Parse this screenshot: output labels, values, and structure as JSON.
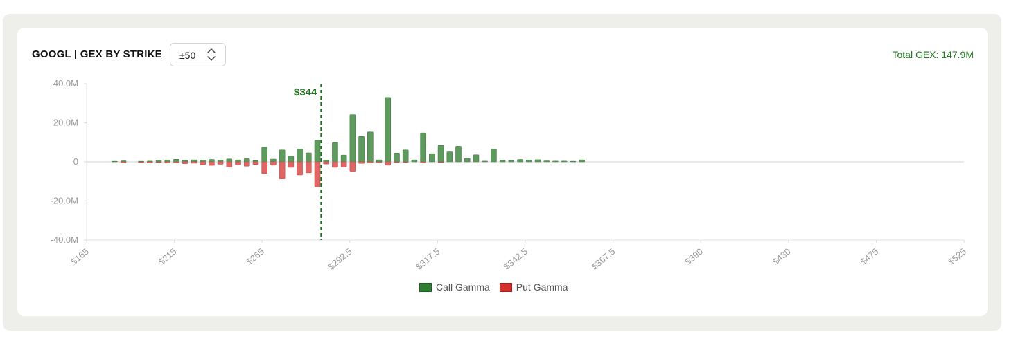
{
  "header": {
    "title": "GOOGL | GEX BY STRIKE",
    "range_value": "±50",
    "total_gex": "Total GEX: 147.9M"
  },
  "colors": {
    "call": "#5e9a5e",
    "call_legend": "#2e7d32",
    "put": "#e06666",
    "put_legend": "#d32f2f",
    "spot": "#1b6e1b"
  },
  "legend": {
    "call_label": "Call Gamma",
    "put_label": "Put Gamma"
  },
  "chart_data": {
    "type": "bar",
    "title": "GOOGL | GEX BY STRIKE",
    "xlabel": "",
    "ylabel": "",
    "ylim": [
      -40,
      40
    ],
    "y_ticks": [
      40,
      20,
      0,
      -20,
      -40
    ],
    "y_tick_labels": [
      "40.0M",
      "20.0M",
      "0",
      "-20.0M",
      "-40.0M"
    ],
    "x_tick_labels": [
      "$165",
      "$215",
      "$265",
      "$292.5",
      "$317.5",
      "$342.5",
      "$367.5",
      "$390",
      "$430",
      "$475",
      "$525"
    ],
    "spot_label": "$344",
    "spot_index": 25.5,
    "series": [
      {
        "name": "Call Gamma",
        "values": [
          0,
          0,
          0.2,
          0.5,
          0,
          0.2,
          0.4,
          0.8,
          0.9,
          1.3,
          0.7,
          1.0,
          0.8,
          1.2,
          0.8,
          1.5,
          1.0,
          1.6,
          0.6,
          7.5,
          1.4,
          6.1,
          2.9,
          6.6,
          4.6,
          11.0,
          0.9,
          9.9,
          3.5,
          24.2,
          13.0,
          15.3,
          1.0,
          33.0,
          4.5,
          6.1,
          1.0,
          14.8,
          4.2,
          8.4,
          5.1,
          8.0,
          1.8,
          3.6,
          0.4,
          6.5,
          0.8,
          0.7,
          1.2,
          0.9,
          1.1,
          0.5,
          0.4,
          0.4,
          0.2,
          1.0
        ]
      },
      {
        "name": "Put Gamma",
        "values": [
          0,
          0,
          0,
          -0.5,
          0,
          -0.4,
          -0.6,
          -0.3,
          -0.6,
          -0.5,
          -0.9,
          -0.7,
          -1.4,
          -1.8,
          -1.2,
          -2.6,
          -1.5,
          -2.2,
          -1.3,
          -6.0,
          -1.7,
          -8.7,
          -2.8,
          -6.7,
          -5.6,
          -12.8,
          -1.1,
          -2.8,
          -2.6,
          -4.8,
          -0.8,
          -0.6,
          -0.4,
          -1.7,
          -0.2,
          -0.2,
          0,
          -0.5,
          0,
          -0.3,
          0,
          0,
          0,
          0,
          0,
          0,
          0,
          0,
          0,
          0,
          0,
          0,
          0,
          0,
          0,
          0
        ]
      }
    ]
  }
}
